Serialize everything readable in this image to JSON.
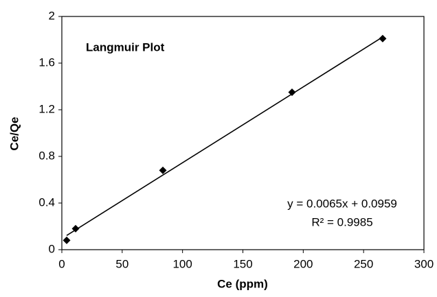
{
  "chart_data": {
    "type": "scatter",
    "title": "Langmuir Plot",
    "x_label": "Ce (ppm)",
    "y_label": "Ce/Qe",
    "x": [
      4,
      11.4,
      83.7,
      190.7,
      265.8
    ],
    "values": [
      0.08,
      0.18,
      0.68,
      1.35,
      1.81
    ],
    "color": "#000000",
    "xlim": [
      0,
      300
    ],
    "xticks": [
      0,
      50,
      100,
      150,
      200,
      250,
      300
    ],
    "ylim": [
      0,
      2
    ],
    "yticks": [
      0,
      0.4,
      0.8,
      1.2,
      1.6,
      2
    ],
    "trendline": {
      "slope": 0.0065,
      "intercept": 0.0959,
      "equation": "y = 0.0065x + 0.0959",
      "r_squared": "R² = 0.9985"
    }
  }
}
